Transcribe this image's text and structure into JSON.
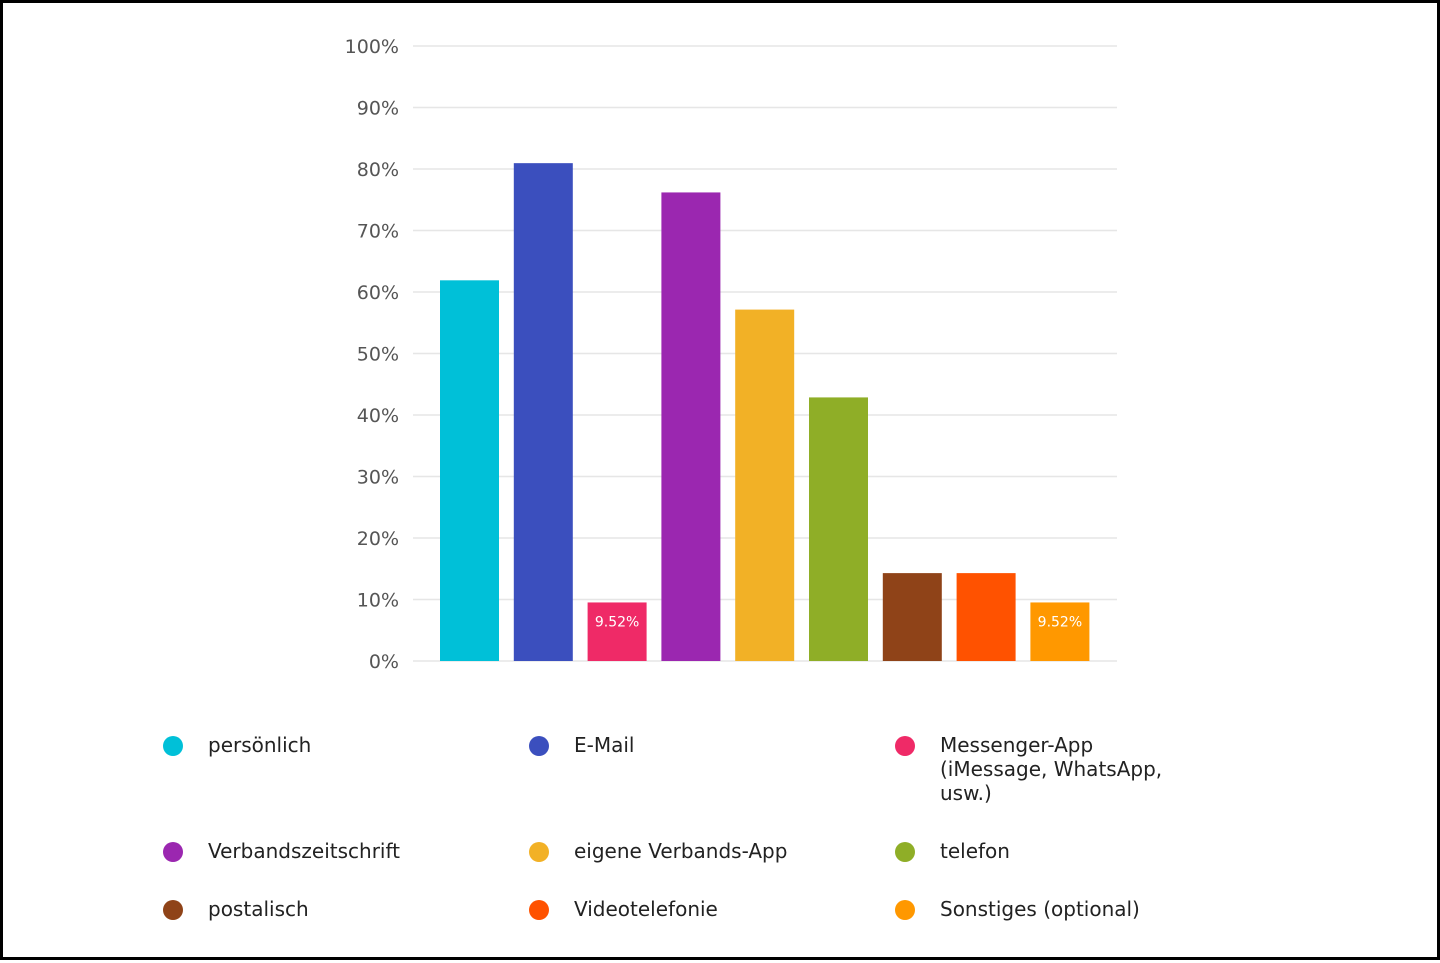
{
  "chart_data": {
    "type": "bar",
    "categories": [
      "persönlich",
      "E-Mail",
      "Messenger-App (iMessage, WhatsApp, usw.)",
      "Verbandszeitschrift",
      "eigene Verbands-App",
      "telefon",
      "postalisch",
      "Videotelefonie",
      "Sonstiges (optional)"
    ],
    "values": [
      61.9,
      80.95,
      9.52,
      76.19,
      57.14,
      42.86,
      14.29,
      14.29,
      9.52
    ],
    "colors": [
      "#00c0d8",
      "#3b4fbe",
      "#ef2a67",
      "#9b27b0",
      "#f2b126",
      "#8fae27",
      "#8f4318",
      "#ff5200",
      "#ff9800"
    ],
    "data_labels": [
      "",
      "",
      "9.52%",
      "",
      "",
      "",
      "",
      "",
      "9.52%"
    ],
    "yticks": [
      "0%",
      "10%",
      "20%",
      "30%",
      "40%",
      "50%",
      "60%",
      "70%",
      "80%",
      "90%",
      "100%"
    ],
    "ylim": [
      0,
      100
    ],
    "grid": true,
    "legend_position": "bottom",
    "title": "",
    "xlabel": "",
    "ylabel": ""
  }
}
